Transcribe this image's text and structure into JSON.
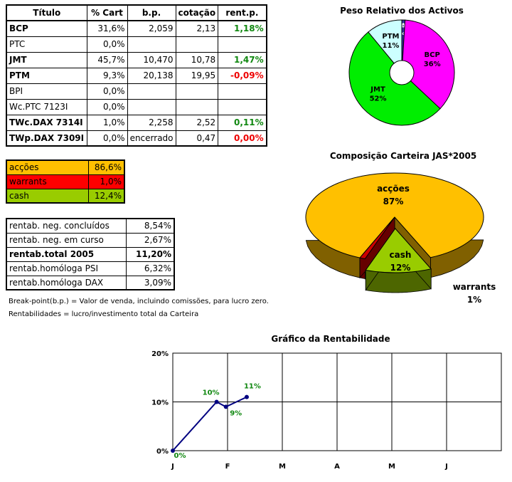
{
  "holdings": {
    "headers": [
      "Título",
      "% Cart",
      "b.p.",
      "cotação",
      "rent.p."
    ],
    "rows": [
      {
        "titulo": "BCP",
        "cart": "31,6%",
        "bp": "2,059",
        "cot": "2,13",
        "rent": "1,18%",
        "rent_color": "green",
        "bold": true
      },
      {
        "titulo": "PTC",
        "cart": "0,0%",
        "bp": "",
        "cot": "",
        "rent": "",
        "rent_color": "",
        "bold": false
      },
      {
        "titulo": "JMT",
        "cart": "45,7%",
        "bp": "10,470",
        "cot": "10,78",
        "rent": "1,47%",
        "rent_color": "green",
        "bold": true
      },
      {
        "titulo": "PTM",
        "cart": "9,3%",
        "bp": "20,138",
        "cot": "19,95",
        "rent": "-0,09%",
        "rent_color": "red",
        "bold": true
      },
      {
        "titulo": "BPI",
        "cart": "0,0%",
        "bp": "",
        "cot": "",
        "rent": "",
        "rent_color": "",
        "bold": false
      },
      {
        "titulo": "Wc.PTC 7123I",
        "cart": "0,0%",
        "bp": "",
        "cot": "",
        "rent": "",
        "rent_color": "",
        "bold": false
      },
      {
        "titulo": "TWc.DAX 7314I",
        "cart": "1,0%",
        "bp": "2,258",
        "cot": "2,52",
        "rent": "0,11%",
        "rent_color": "green",
        "bold": true
      },
      {
        "titulo": "TWp.DAX 7309I",
        "cart": "0,0%",
        "bp": "encerrado",
        "cot": "0,47",
        "rent": "0,00%",
        "rent_color": "red",
        "bold": true
      }
    ]
  },
  "allocation": [
    {
      "label": "acções",
      "value": "86,6%",
      "bg": "#ffc000"
    },
    {
      "label": "warrants",
      "value": "1,0%",
      "bg": "#ff0000"
    },
    {
      "label": "cash",
      "value": "12,4%",
      "bg": "#99cc00"
    }
  ],
  "returns": [
    {
      "label": "rentab. neg. concluídos",
      "value": "8,54%",
      "bold": false
    },
    {
      "label": "rentab. neg. em curso",
      "value": "2,67%",
      "bold": false
    },
    {
      "label": "rentab.total 2005",
      "value": "11,20%",
      "bold": true
    },
    {
      "label": "rentab.homóloga PSI",
      "value": "6,32%",
      "bold": false
    },
    {
      "label": "rentab.homóloga DAX",
      "value": "3,09%",
      "bold": false
    }
  ],
  "notes": {
    "breakpoint": "Break-point(b.p.) = Valor de venda, incluindo comissões, para lucro zero.",
    "rentabilidades": "Rentabilidades = lucro/investimento total da Carteira"
  },
  "chart_data": [
    {
      "type": "pie",
      "title": "Peso Relativo dos Activos",
      "slices": [
        {
          "label": "DAX",
          "value": 1,
          "text": "1%",
          "color": "#333399"
        },
        {
          "label": "BCP",
          "value": 36,
          "text": "36%",
          "color": "#ff00ff"
        },
        {
          "label": "JMT",
          "value": 52,
          "text": "52%",
          "color": "#00ee00"
        },
        {
          "label": "PTM",
          "value": 11,
          "text": "11%",
          "color": "#ccffff"
        }
      ]
    },
    {
      "type": "pie",
      "title": "Composição Carteira JAS*2005",
      "slices": [
        {
          "label": "acções",
          "value": 87,
          "text": "87%",
          "color": "#ffc000"
        },
        {
          "label": "cash",
          "value": 12,
          "text": "12%",
          "color": "#99cc00"
        },
        {
          "label": "warrants",
          "value": 1,
          "text": "1%",
          "color": "#cc0000"
        }
      ]
    },
    {
      "type": "line",
      "title": "Gráfico da Rentabilidade",
      "x_ticks": [
        "J",
        "F",
        "M",
        "A",
        "M",
        "J"
      ],
      "y_ticks": [
        "0%",
        "10%",
        "20%"
      ],
      "ylim": [
        0,
        20
      ],
      "series": [
        {
          "color": "#000080",
          "points": [
            {
              "x": 0,
              "y": 0,
              "label": "0%"
            },
            {
              "x": 0.8,
              "y": 10,
              "label": "10%"
            },
            {
              "x": 0.97,
              "y": 9,
              "label": "9%"
            },
            {
              "x": 1.35,
              "y": 11,
              "label": "11%"
            }
          ]
        }
      ]
    }
  ]
}
